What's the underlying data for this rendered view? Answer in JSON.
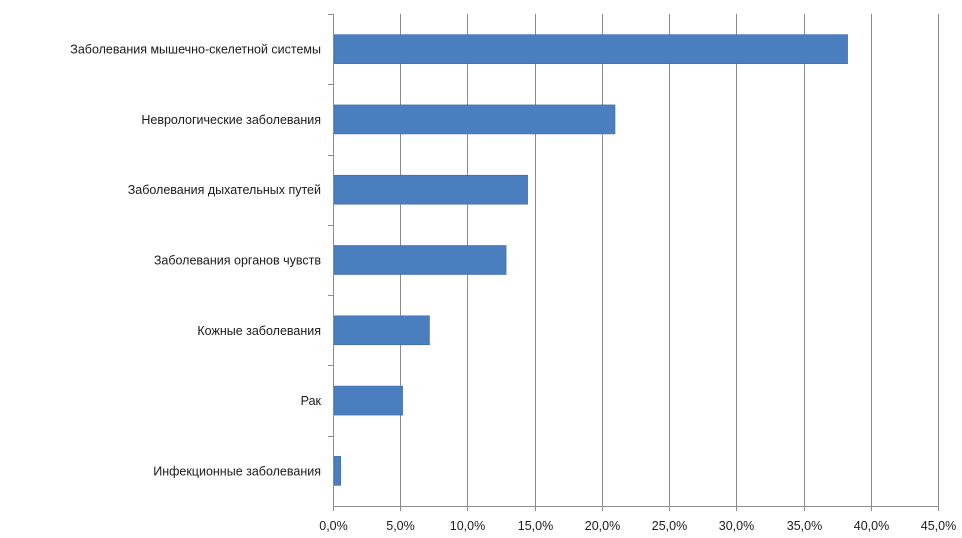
{
  "chart_data": {
    "type": "bar",
    "orientation": "horizontal",
    "title": "",
    "xlabel": "",
    "ylabel": "",
    "categories": [
      "Заболевания мышечно-скелетной системы",
      "Неврологические заболевания",
      "Заболевания дыхательных путей",
      "Заболевания органов чувств",
      "Кожные заболевания",
      "Рак",
      "Инфекционные заболевания"
    ],
    "values": [
      38.2,
      20.9,
      14.4,
      12.8,
      7.1,
      5.1,
      0.5
    ],
    "xlim": [
      0,
      45
    ],
    "ticks": [
      0,
      5,
      10,
      15,
      20,
      25,
      30,
      35,
      40,
      45
    ],
    "tick_labels": [
      "0,0%",
      "5,0%",
      "10,0%",
      "15,0%",
      "20,0%",
      "25,0%",
      "30,0%",
      "35,0%",
      "40,0%",
      "45,0%"
    ],
    "grid": "vertical",
    "legend": "none",
    "bar_color": "#4a7ebf",
    "bar_edge_color": "#3a6aa5"
  }
}
